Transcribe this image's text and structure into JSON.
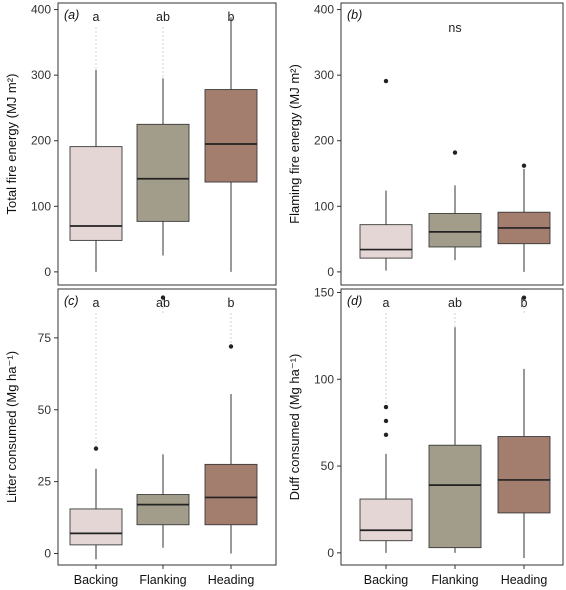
{
  "colors": {
    "Backing": "#e3d6d4",
    "Flanking": "#a29d8a",
    "Heading": "#a37d6e"
  },
  "chart_data": [
    {
      "type": "box",
      "panel_label": "(a)",
      "ylabel": "Total fire energy (MJ m²)",
      "ylim": [
        -20,
        410
      ],
      "yticks": [
        0,
        100,
        200,
        300,
        400
      ],
      "categories": [
        "Backing",
        "Flanking",
        "Heading"
      ],
      "letters": [
        "a",
        "ab",
        "b"
      ],
      "boxes": [
        {
          "category": "Backing",
          "min": 0,
          "q1": 48,
          "median": 70,
          "q3": 191,
          "max": 308,
          "outliers": []
        },
        {
          "category": "Flanking",
          "min": 25,
          "q1": 77,
          "median": 142,
          "q3": 225,
          "max": 295,
          "outliers": []
        },
        {
          "category": "Heading",
          "min": 0,
          "q1": 137,
          "median": 195,
          "q3": 278,
          "max": 388,
          "outliers": []
        }
      ]
    },
    {
      "type": "box",
      "panel_label": "(b)",
      "ylabel": "Flaming fire energy (MJ m²)",
      "ylim": [
        -20,
        410
      ],
      "yticks": [
        0,
        100,
        200,
        300,
        400
      ],
      "categories": [
        "Backing",
        "Flanking",
        "Heading"
      ],
      "annotation": "ns",
      "boxes": [
        {
          "category": "Backing",
          "min": 2,
          "q1": 21,
          "median": 34,
          "q3": 72,
          "max": 124,
          "outliers": [
            291
          ]
        },
        {
          "category": "Flanking",
          "min": 18,
          "q1": 38,
          "median": 61,
          "q3": 89,
          "max": 132,
          "outliers": [
            182
          ]
        },
        {
          "category": "Heading",
          "min": 0,
          "q1": 43,
          "median": 67,
          "q3": 91,
          "max": 157,
          "outliers": [
            162
          ]
        }
      ]
    },
    {
      "type": "box",
      "panel_label": "(c)",
      "ylabel": "Litter consumed (Mg ha⁻¹)",
      "ylim": [
        -4,
        92
      ],
      "yticks": [
        0,
        25,
        50,
        75
      ],
      "categories": [
        "Backing",
        "Flanking",
        "Heading"
      ],
      "letters": [
        "a",
        "ab",
        "b"
      ],
      "boxes": [
        {
          "category": "Backing",
          "min": -2,
          "q1": 3,
          "median": 7,
          "q3": 15.5,
          "max": 29.5,
          "outliers": [
            36.5
          ]
        },
        {
          "category": "Flanking",
          "min": 2,
          "q1": 10,
          "median": 17,
          "q3": 20.5,
          "max": 34.5,
          "outliers": [
            89
          ]
        },
        {
          "category": "Heading",
          "min": 0,
          "q1": 10,
          "median": 19.5,
          "q3": 31,
          "max": 55.5,
          "outliers": [
            72
          ]
        }
      ]
    },
    {
      "type": "box",
      "panel_label": "(d)",
      "ylabel": "Duff consumed (Mg ha⁻¹)",
      "ylim": [
        -7,
        152
      ],
      "yticks": [
        0,
        50,
        100,
        150
      ],
      "categories": [
        "Backing",
        "Flanking",
        "Heading"
      ],
      "letters": [
        "a",
        "ab",
        "b"
      ],
      "boxes": [
        {
          "category": "Backing",
          "min": 0,
          "q1": 7,
          "median": 13,
          "q3": 31,
          "max": 57,
          "outliers": [
            68,
            76,
            84
          ]
        },
        {
          "category": "Flanking",
          "min": 0,
          "q1": 3,
          "median": 39,
          "q3": 62,
          "max": 130,
          "outliers": []
        },
        {
          "category": "Heading",
          "min": -3,
          "q1": 23,
          "median": 42,
          "q3": 67,
          "max": 106,
          "outliers": [
            147
          ]
        }
      ]
    }
  ]
}
